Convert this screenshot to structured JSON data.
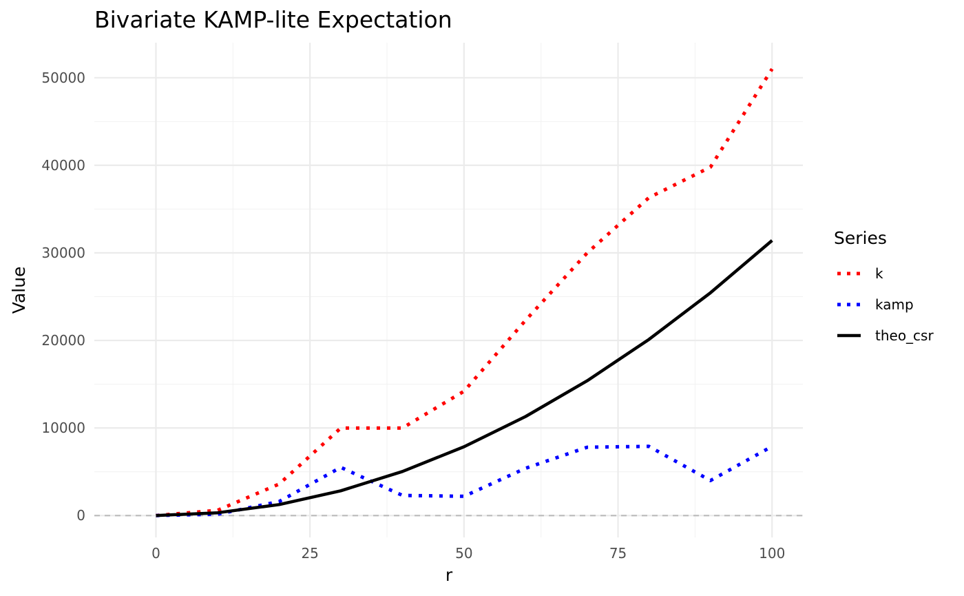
{
  "chart_data": {
    "type": "line",
    "title": "Bivariate KAMP-lite Expectation",
    "xlabel": "r",
    "ylabel": "Value",
    "xlim": [
      -10,
      105
    ],
    "ylim": [
      -2500,
      54000
    ],
    "x_ticks": [
      0,
      25,
      50,
      75,
      100
    ],
    "x_tick_labels": [
      "0",
      "25",
      "50",
      "75",
      "100"
    ],
    "y_ticks": [
      0,
      10000,
      20000,
      30000,
      40000,
      50000
    ],
    "y_tick_labels": [
      "0",
      "10000",
      "20000",
      "30000",
      "40000",
      "50000"
    ],
    "grid": true,
    "reference_line": {
      "y": 0,
      "style": "dashed",
      "color": "#bebebe"
    },
    "legend": {
      "title": "Series",
      "position": "right"
    },
    "x": [
      0,
      10,
      20,
      30,
      40,
      50,
      60,
      70,
      80,
      90,
      100
    ],
    "series": [
      {
        "name": "k",
        "color": "#ff0000",
        "style": "dotted",
        "values": [
          0,
          600,
          3600,
          10000,
          10000,
          14200,
          22300,
          30000,
          36300,
          39800,
          51000
        ]
      },
      {
        "name": "kamp",
        "color": "#0000ff",
        "style": "dotted",
        "values": [
          0,
          150,
          1600,
          5500,
          2300,
          2200,
          5400,
          7800,
          7900,
          4000,
          7900
        ]
      },
      {
        "name": "theo_csr",
        "color": "#000000",
        "style": "solid",
        "values": [
          0,
          314,
          1257,
          2827,
          5027,
          7854,
          11310,
          15394,
          20106,
          25447,
          31416
        ]
      }
    ]
  }
}
